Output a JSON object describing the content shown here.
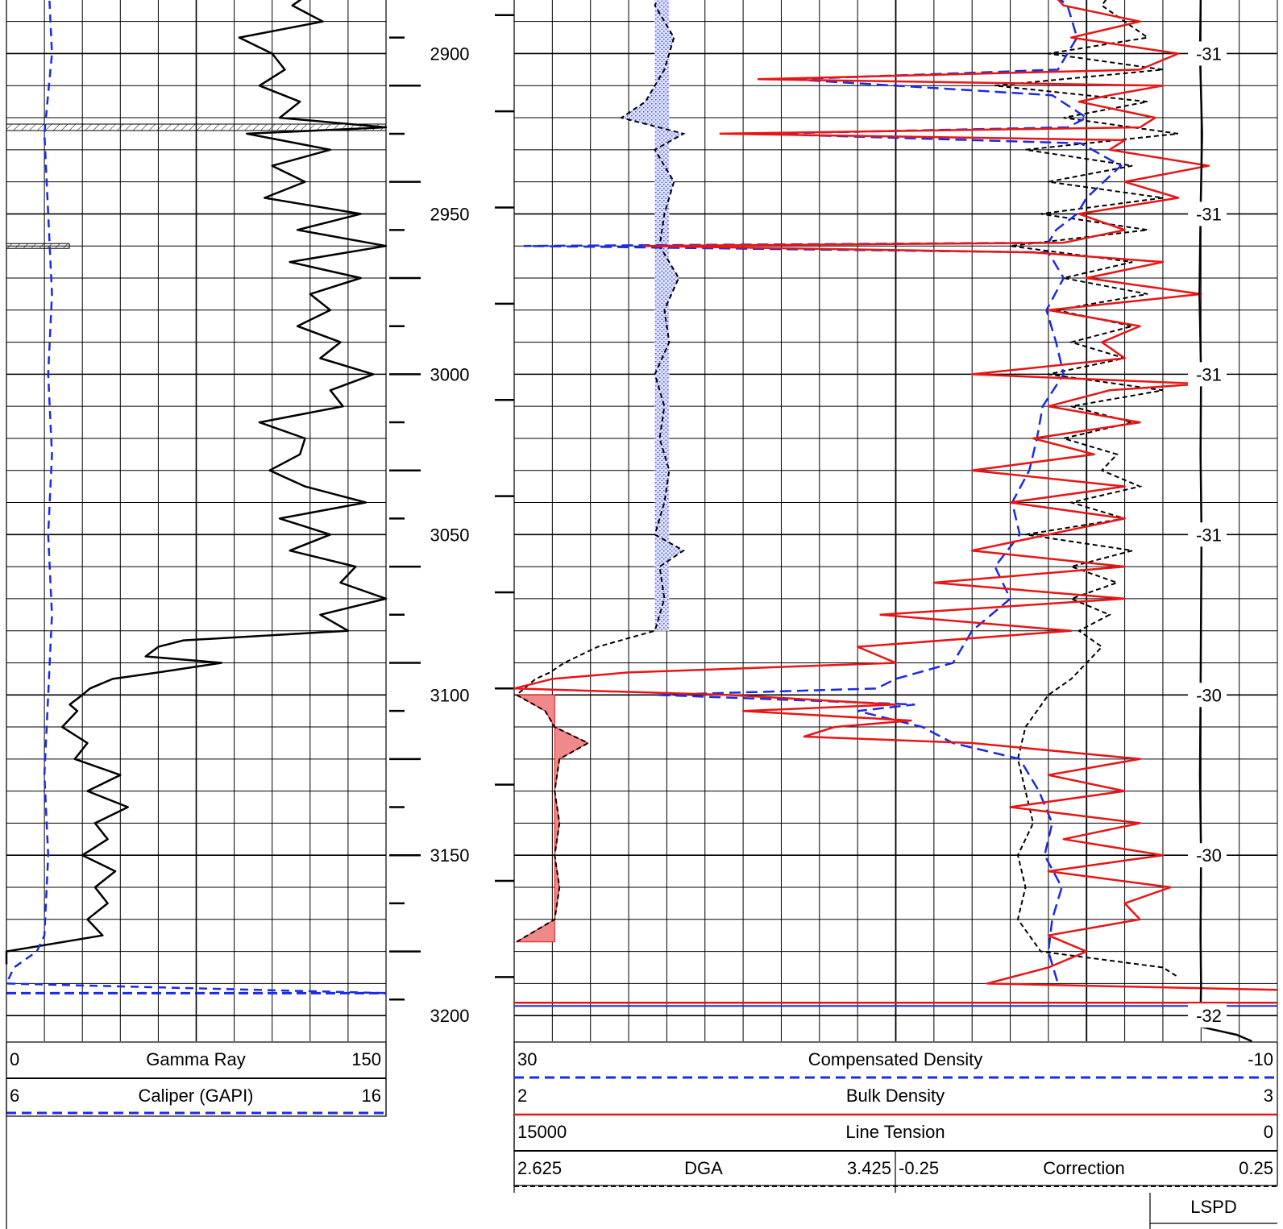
{
  "chart_data": {
    "type": "line",
    "depth_axis": {
      "label_values": [
        2900,
        2950,
        3000,
        3050,
        3100,
        3150,
        3200
      ],
      "range": [
        2875,
        3208
      ]
    },
    "left_track": {
      "curves": [
        {
          "name": "Gamma Ray",
          "min": "0",
          "max": "150",
          "color": "#000000",
          "style": "solid"
        },
        {
          "name": "Caliper (GAPI)",
          "min": "6",
          "max": "16",
          "color": "#1a2be6",
          "style": "dashed"
        }
      ],
      "gamma_ray": {
        "depth": [
          2875,
          2880,
          2885,
          2890,
          2895,
          2900,
          2905,
          2910,
          2915,
          2920,
          2923,
          2925,
          2930,
          2935,
          2940,
          2945,
          2950,
          2955,
          2960,
          2965,
          2970,
          2975,
          2980,
          2985,
          2990,
          2995,
          3000,
          3005,
          3010,
          3015,
          3020,
          3025,
          3030,
          3035,
          3040,
          3045,
          3050,
          3055,
          3060,
          3065,
          3070,
          3075,
          3080,
          3083,
          3085,
          3088,
          3090,
          3093,
          3095,
          3098,
          3100,
          3103,
          3105,
          3110,
          3115,
          3120,
          3125,
          3130,
          3135,
          3140,
          3145,
          3150,
          3155,
          3160,
          3165,
          3170,
          3175,
          3180,
          3184
        ],
        "value": [
          120,
          122,
          113,
          125,
          92,
          105,
          110,
          100,
          116,
          108,
          150,
          95,
          128,
          105,
          118,
          102,
          140,
          115,
          150,
          112,
          140,
          120,
          128,
          115,
          132,
          124,
          145,
          128,
          133,
          100,
          118,
          116,
          104,
          118,
          142,
          108,
          128,
          112,
          138,
          132,
          150,
          124,
          135,
          70,
          60,
          55,
          85,
          60,
          42,
          33,
          30,
          25,
          28,
          22,
          32,
          27,
          45,
          32,
          48,
          35,
          40,
          30,
          43,
          35,
          40,
          32,
          38,
          0,
          0
        ]
      },
      "caliper": {
        "depth": [
          2875,
          2900,
          2925,
          2950,
          2975,
          3000,
          3025,
          3050,
          3075,
          3100,
          3125,
          3150,
          3175,
          3180,
          3185,
          3190,
          3193
        ],
        "value": [
          7.1,
          7.2,
          7.0,
          7.1,
          7.2,
          7.1,
          7.2,
          7.1,
          7.2,
          7.1,
          7.0,
          7.1,
          7.0,
          6.8,
          6.2,
          6.0,
          16
        ]
      }
    },
    "right_track": {
      "curves": [
        {
          "name": "Compensated Density",
          "min": "30",
          "max": "-10",
          "color": "#1a2be6",
          "style": "dashed"
        },
        {
          "name": "Bulk Density",
          "min": "2",
          "max": "3",
          "color": "#e81515",
          "style": "solid"
        },
        {
          "name": "Line Tension",
          "min": "15000",
          "max": "0",
          "color": "#000000",
          "style": "solid"
        }
      ],
      "dga_label": {
        "name": "DGA",
        "min": "2.625",
        "max": "3.425"
      },
      "correction_label": {
        "name": "Correction",
        "min": "-0.25",
        "max": "0.25"
      },
      "lspd_label": "LSPD",
      "bulk_density": {
        "depth": [
          2875,
          2880,
          2885,
          2890,
          2895,
          2900,
          2905,
          2908,
          2910,
          2913,
          2915,
          2920,
          2923,
          2925,
          2927,
          2930,
          2935,
          2940,
          2945,
          2950,
          2955,
          2959,
          2960,
          2962,
          2965,
          2970,
          2975,
          2980,
          2985,
          2990,
          2995,
          3000,
          3003,
          3005,
          3010,
          3015,
          3020,
          3025,
          3030,
          3035,
          3040,
          3045,
          3050,
          3055,
          3060,
          3065,
          3070,
          3075,
          3080,
          3085,
          3090,
          3093,
          3095,
          3098,
          3100,
          3103,
          3105,
          3108,
          3110,
          3113,
          3115,
          3120,
          3125,
          3130,
          3135,
          3140,
          3145,
          3150,
          3155,
          3160,
          3165,
          3170,
          3175,
          3180,
          3185,
          3190,
          3192
        ],
        "value": [
          2.65,
          2.7,
          2.72,
          2.82,
          2.73,
          2.87,
          2.82,
          2.32,
          2.85,
          2.78,
          2.74,
          2.84,
          2.82,
          2.27,
          2.8,
          2.78,
          2.91,
          2.8,
          2.87,
          2.74,
          2.8,
          2.72,
          2.17,
          2.68,
          2.85,
          2.75,
          2.9,
          2.7,
          2.82,
          2.77,
          2.8,
          2.6,
          2.9,
          2.78,
          2.7,
          2.82,
          2.68,
          2.76,
          2.6,
          2.8,
          2.65,
          2.8,
          2.7,
          2.6,
          2.8,
          2.55,
          2.8,
          2.48,
          2.73,
          2.45,
          2.5,
          2.15,
          2.05,
          2.0,
          2.28,
          2.5,
          2.3,
          2.52,
          2.42,
          2.38,
          2.6,
          2.82,
          2.7,
          2.8,
          2.65,
          2.82,
          2.72,
          2.85,
          2.7,
          2.86,
          2.8,
          2.82,
          2.7,
          2.75,
          2.7,
          2.62,
          3.0
        ]
      },
      "compensated_density": {
        "depth": [
          2875,
          2885,
          2895,
          2905,
          2908,
          2913,
          2920,
          2923,
          2925,
          2928,
          2935,
          2945,
          2950,
          2955,
          2959,
          2960,
          2962,
          2970,
          2980,
          2990,
          3000,
          3010,
          3020,
          3030,
          3040,
          3050,
          3060,
          3070,
          3080,
          3090,
          3095,
          3098,
          3100,
          3103,
          3105,
          3110,
          3115,
          3120,
          3130,
          3140,
          3150,
          3160,
          3170,
          3180,
          3190
        ],
        "value": [
          3.0,
          1.0,
          0.5,
          1.5,
          15.5,
          1.8,
          0.0,
          1.0,
          17.2,
          0.3,
          -1.8,
          0.0,
          0.5,
          1.6,
          2.0,
          29.5,
          2.0,
          1.2,
          2.1,
          1.6,
          1.2,
          2.3,
          2.6,
          3.0,
          3.9,
          3.5,
          4.8,
          4.0,
          6.0,
          7.0,
          10.0,
          11.0,
          22.5,
          9.0,
          12.0,
          8.6,
          7.0,
          3.5,
          2.5,
          1.8,
          2.2,
          1.3,
          1.8,
          2.0,
          1.5
        ]
      },
      "dga": {
        "depth": [
          2875,
          2885,
          2895,
          2905,
          2915,
          2920,
          2925,
          2930,
          2940,
          2950,
          2960,
          2970,
          2980,
          2990,
          3000,
          3010,
          3020,
          3030,
          3040,
          3050,
          3055,
          3060,
          3070,
          3080,
          3085,
          3090,
          3093,
          3095,
          3100,
          3105,
          3110,
          3115,
          3120,
          3130,
          3140,
          3150,
          3160,
          3170,
          3177
        ],
        "value": [
          2.95,
          2.92,
          2.96,
          2.94,
          2.9,
          2.85,
          2.98,
          2.92,
          2.96,
          2.94,
          2.93,
          2.97,
          2.94,
          2.95,
          2.92,
          2.94,
          2.93,
          2.95,
          2.94,
          2.92,
          2.98,
          2.93,
          2.94,
          2.92,
          2.8,
          2.73,
          2.7,
          2.67,
          2.63,
          2.69,
          2.71,
          2.78,
          2.72,
          2.71,
          2.72,
          2.71,
          2.72,
          2.71,
          2.63
        ]
      },
      "correction": {
        "depth": [
          2875,
          2885,
          2895,
          2900,
          2905,
          2910,
          2915,
          2920,
          2925,
          2930,
          2935,
          2940,
          2945,
          2950,
          2955,
          2960,
          2965,
          2970,
          2975,
          2980,
          2985,
          2990,
          2995,
          3000,
          3005,
          3010,
          3015,
          3020,
          3025,
          3030,
          3035,
          3040,
          3045,
          3050,
          3055,
          3060,
          3065,
          3070,
          3075,
          3080,
          3085,
          3090,
          3095,
          3100,
          3110,
          3120,
          3130,
          3140,
          3150,
          3160,
          3170,
          3180,
          3185,
          3188
        ],
        "value": [
          0.05,
          0.02,
          0.08,
          -0.05,
          0.1,
          -0.12,
          0.08,
          -0.03,
          0.12,
          -0.08,
          0.06,
          -0.05,
          0.1,
          -0.06,
          0.08,
          -0.1,
          0.06,
          -0.03,
          0.08,
          -0.04,
          0.06,
          -0.02,
          0.05,
          -0.05,
          0.1,
          -0.02,
          0.06,
          -0.03,
          0.04,
          0.02,
          0.07,
          -0.02,
          0.05,
          -0.08,
          0.06,
          -0.02,
          0.04,
          -0.02,
          0.03,
          -0.01,
          0.02,
          0.0,
          -0.02,
          -0.05,
          -0.08,
          -0.09,
          -0.08,
          -0.07,
          -0.09,
          -0.08,
          -0.09,
          -0.06,
          0.1,
          0.12
        ]
      },
      "line_tension": {
        "depth": [
          2875,
          2900,
          2925,
          2950,
          2975,
          3000,
          3025,
          3050,
          3075,
          3100,
          3125,
          3150,
          3175,
          3190,
          3195,
          3200,
          3203,
          3206,
          3208
        ],
        "value": [
          1500,
          1520,
          1480,
          1510,
          1530,
          1500,
          1510,
          1490,
          1500,
          1510,
          1520,
          1500,
          1510,
          1500,
          1505,
          1510,
          1650,
          800,
          500
        ]
      },
      "speed_readout": {
        "depth": [
          2900,
          2950,
          3000,
          3050,
          3100,
          3150,
          3200
        ],
        "label": [
          "-31",
          "-31",
          "-31",
          "-31",
          "-30",
          "-30",
          "-32"
        ]
      }
    }
  }
}
